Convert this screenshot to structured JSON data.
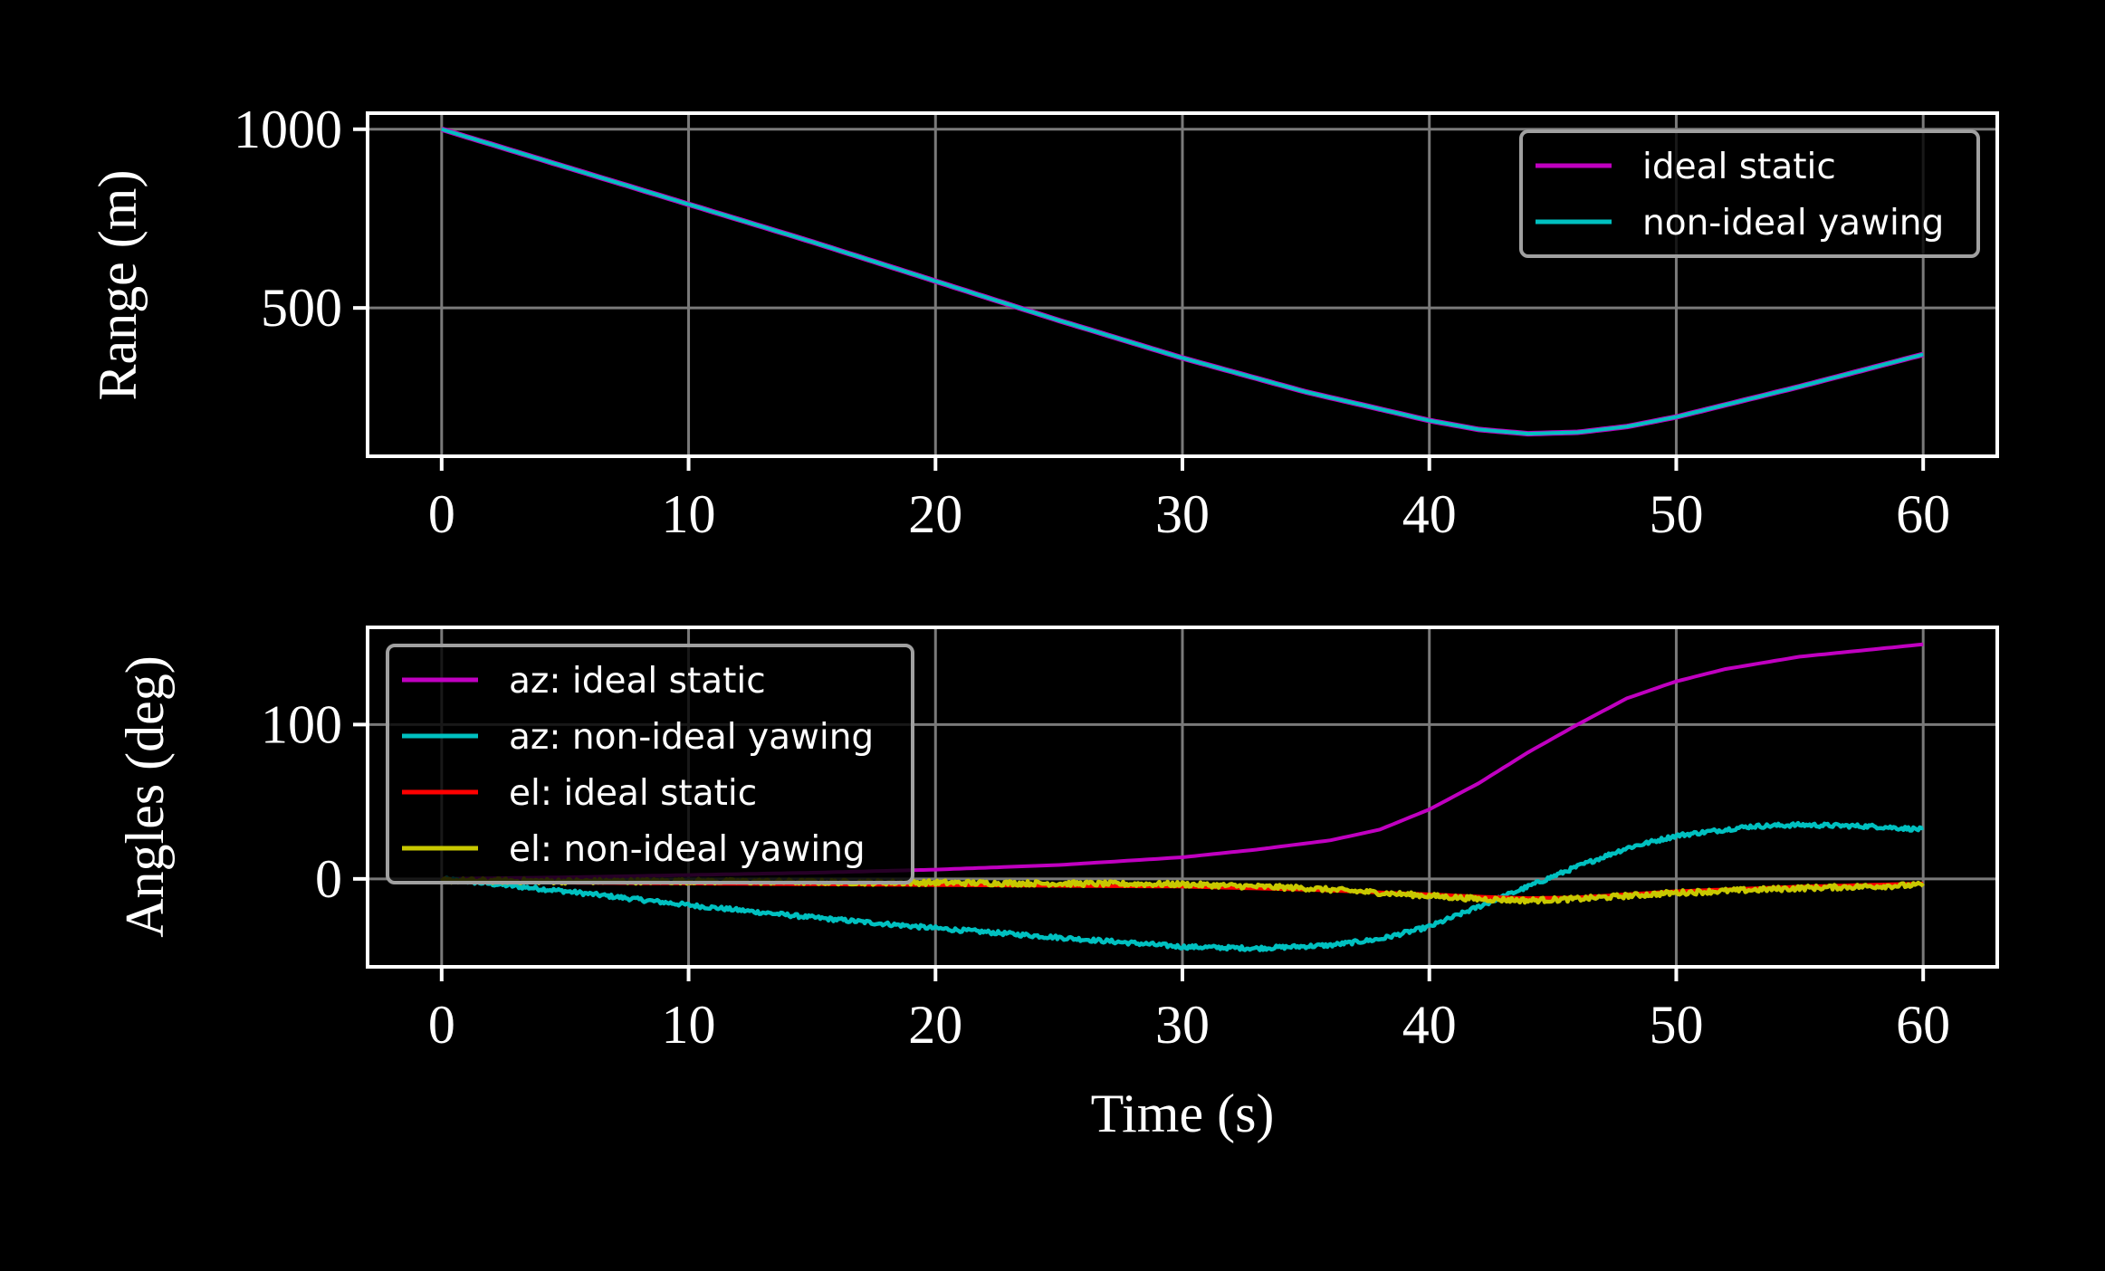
{
  "chart_data": [
    {
      "type": "line",
      "xlabel": "",
      "ylabel": "Range (m)",
      "xlim": [
        -3,
        63
      ],
      "ylim": [
        85,
        1045
      ],
      "xticks": [
        0,
        10,
        20,
        30,
        40,
        50,
        60
      ],
      "xtick_labels": [
        "0",
        "10",
        "20",
        "30",
        "40",
        "50",
        "60"
      ],
      "yticks": [
        500,
        1000
      ],
      "ytick_labels": [
        "500",
        "1000"
      ],
      "grid": true,
      "legend_position": "top-right",
      "series": [
        {
          "name": "ideal static",
          "color": "#c000c0",
          "x": [
            0,
            5,
            10,
            15,
            20,
            25,
            30,
            35,
            40,
            42,
            44,
            46,
            48,
            50,
            55,
            60
          ],
          "y": [
            1000,
            895,
            790,
            685,
            575,
            465,
            360,
            265,
            185,
            160,
            148,
            152,
            168,
            195,
            280,
            370
          ]
        },
        {
          "name": "non-ideal yawing",
          "color": "#00c0c0",
          "x": [
            0,
            5,
            10,
            15,
            20,
            25,
            30,
            35,
            40,
            42,
            44,
            46,
            48,
            50,
            55,
            60
          ],
          "y": [
            1000,
            895,
            790,
            685,
            575,
            465,
            360,
            265,
            185,
            160,
            148,
            152,
            168,
            195,
            280,
            370
          ]
        }
      ]
    },
    {
      "type": "line",
      "xlabel": "Time (s)",
      "ylabel": "Angles (deg)",
      "xlim": [
        -3,
        63
      ],
      "ylim": [
        -57,
        163
      ],
      "xticks": [
        0,
        10,
        20,
        30,
        40,
        50,
        60
      ],
      "xtick_labels": [
        "0",
        "10",
        "20",
        "30",
        "40",
        "50",
        "60"
      ],
      "yticks": [
        0,
        100
      ],
      "ytick_labels": [
        "0",
        "100"
      ],
      "grid": true,
      "legend_position": "top-left",
      "series": [
        {
          "name": "az: ideal static",
          "color": "#c000c0",
          "x": [
            0,
            5,
            10,
            15,
            20,
            25,
            30,
            33,
            36,
            38,
            40,
            42,
            44,
            46,
            48,
            50,
            52,
            55,
            60
          ],
          "y": [
            0,
            1,
            2.5,
            4,
            6,
            9,
            14,
            19,
            25,
            32,
            45,
            62,
            82,
            100,
            117,
            128,
            136,
            144,
            152
          ]
        },
        {
          "name": "az: non-ideal yawing",
          "color": "#00c0c0",
          "x": [
            0,
            5,
            10,
            15,
            20,
            25,
            30,
            33,
            36,
            38,
            40,
            42,
            44,
            46,
            48,
            50,
            53,
            55,
            58,
            60
          ],
          "y": [
            0,
            -8,
            -17,
            -25,
            -32,
            -38,
            -44,
            -45,
            -43,
            -39,
            -31,
            -18,
            -5,
            8,
            20,
            28,
            34,
            35,
            34,
            32
          ]
        },
        {
          "name": "el: ideal static",
          "color": "#ff0000",
          "x": [
            0,
            5,
            10,
            15,
            20,
            25,
            30,
            35,
            40,
            42,
            44,
            46,
            48,
            50,
            55,
            60
          ],
          "y": [
            -2,
            -2.5,
            -3,
            -3.5,
            -4,
            -4.5,
            -5,
            -7,
            -10,
            -11.5,
            -12.5,
            -12,
            -10,
            -8,
            -5,
            -3
          ]
        },
        {
          "name": "el: non-ideal yawing",
          "color": "#c8c800",
          "x": [
            0,
            5,
            10,
            15,
            20,
            25,
            30,
            35,
            40,
            42,
            44,
            46,
            48,
            50,
            55,
            60
          ],
          "y": [
            -1,
            -1.5,
            -1.5,
            -2,
            -2.5,
            -3,
            -3.5,
            -6,
            -11,
            -13,
            -14,
            -13,
            -11,
            -9,
            -6,
            -4
          ]
        }
      ]
    }
  ]
}
